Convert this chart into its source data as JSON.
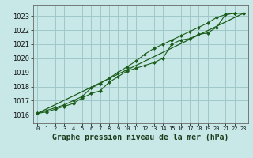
{
  "title": "Graphe pression niveau de la mer (hPa)",
  "bg_color": "#c8e8e8",
  "plot_bg_color": "#c8e8e8",
  "grid_color": "#a0c8c8",
  "line_color": "#1a5c1a",
  "marker_color": "#1a5c1a",
  "x_ticks": [
    0,
    1,
    2,
    3,
    4,
    5,
    6,
    7,
    8,
    9,
    10,
    11,
    12,
    13,
    14,
    15,
    16,
    17,
    18,
    19,
    20,
    21,
    22,
    23
  ],
  "xlim_min": -0.5,
  "xlim_max": 23.5,
  "ylim_min": 1015.4,
  "ylim_max": 1023.8,
  "yticks": [
    1016,
    1017,
    1018,
    1019,
    1020,
    1021,
    1022,
    1023
  ],
  "line1_x": [
    0,
    1,
    2,
    3,
    4,
    5,
    6,
    7,
    8,
    9,
    10,
    11,
    12,
    13,
    14,
    15,
    16,
    17,
    18,
    19,
    20,
    21,
    22,
    23
  ],
  "line1_y": [
    1016.1,
    1016.2,
    1016.4,
    1016.6,
    1016.8,
    1017.2,
    1017.5,
    1017.7,
    1018.3,
    1018.7,
    1019.1,
    1019.3,
    1019.5,
    1019.7,
    1020.0,
    1021.0,
    1021.3,
    1021.4,
    1021.7,
    1021.8,
    1022.2,
    1023.1,
    1023.2,
    1023.2
  ],
  "line2_x": [
    0,
    1,
    2,
    3,
    4,
    5,
    6,
    7,
    8,
    9,
    10,
    11,
    12,
    13,
    14,
    15,
    16,
    17,
    18,
    19,
    20,
    21,
    22,
    23
  ],
  "line2_y": [
    1016.1,
    1016.3,
    1016.5,
    1016.7,
    1017.0,
    1017.3,
    1017.9,
    1018.2,
    1018.6,
    1019.0,
    1019.4,
    1019.8,
    1020.3,
    1020.7,
    1021.0,
    1021.3,
    1021.6,
    1021.9,
    1022.2,
    1022.5,
    1022.9,
    1023.1,
    1023.2,
    1023.2
  ],
  "line3_x": [
    0,
    23
  ],
  "line3_y": [
    1016.1,
    1023.2
  ],
  "ytick_fontsize": 6,
  "xtick_fontsize": 5,
  "xlabel_fontsize": 7
}
